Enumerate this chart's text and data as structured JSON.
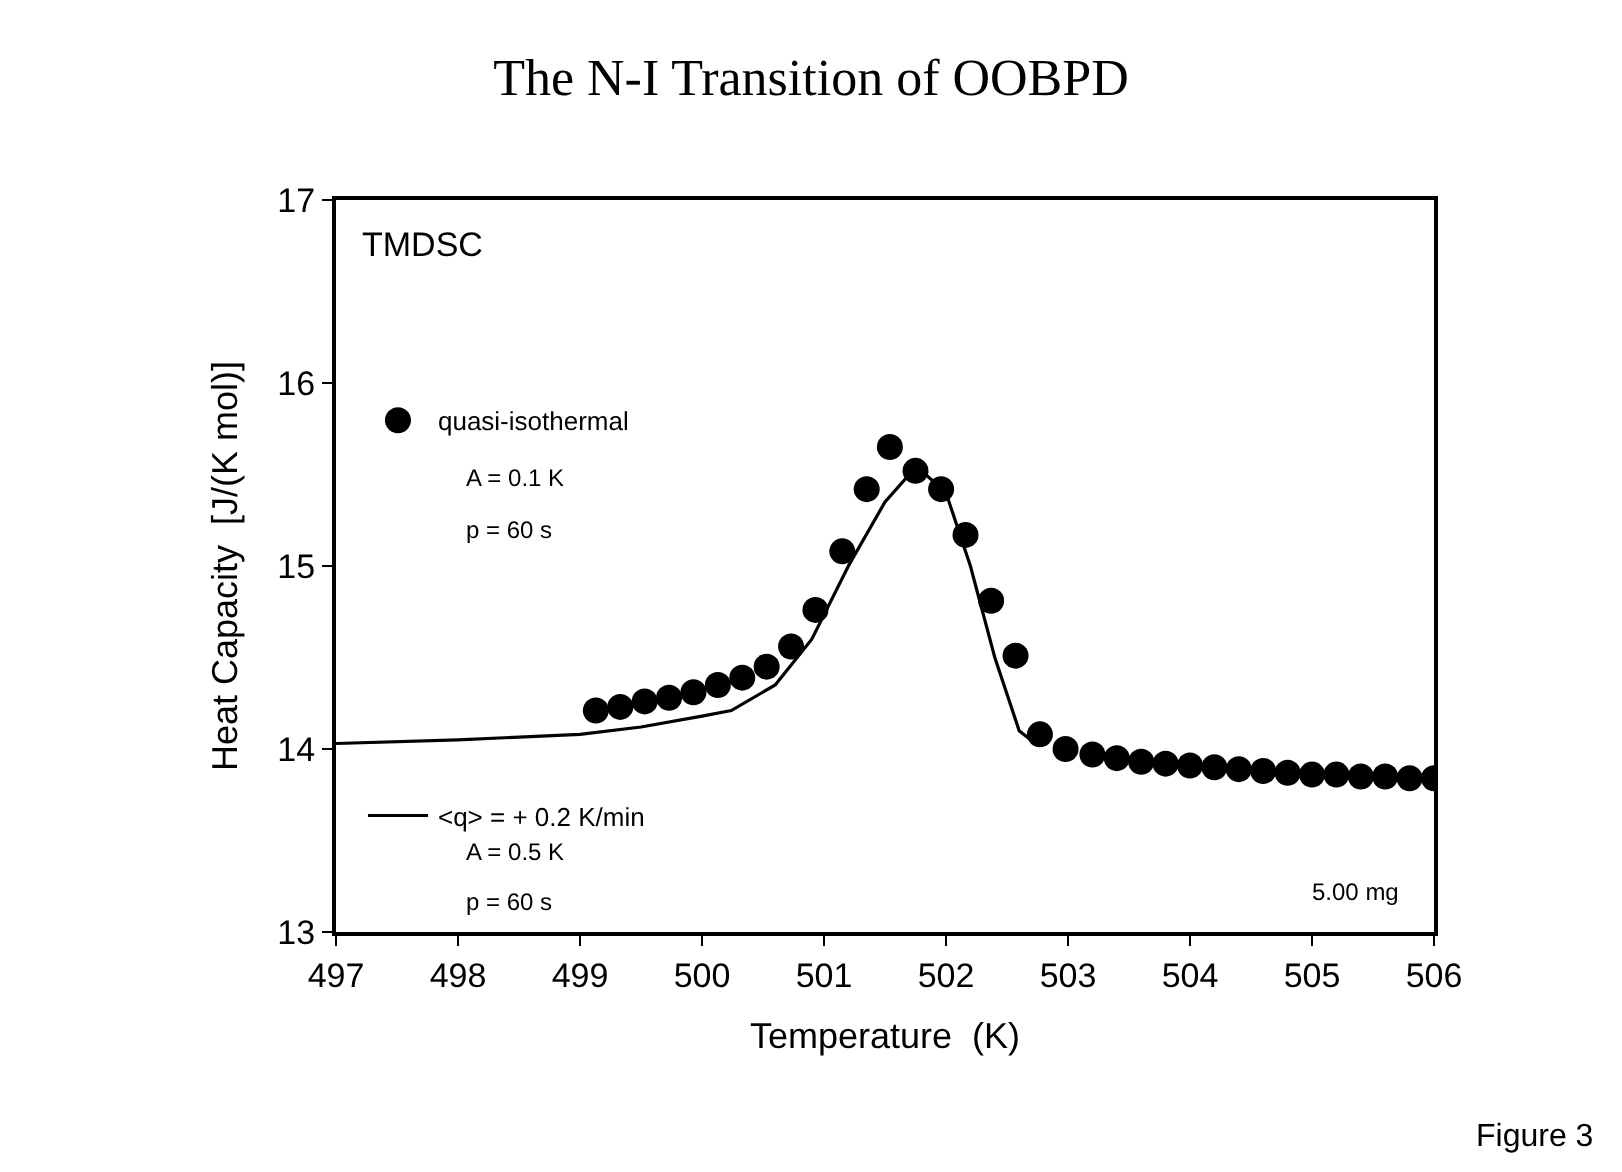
{
  "chart_data": {
    "type": "scatter",
    "title": "The N-I Transition of OOBPD",
    "xlabel": "Temperature  (K)",
    "ylabel": "Heat Capacity  [J/(K mol)]",
    "xlim": [
      497,
      506
    ],
    "xticks": [
      497,
      498,
      499,
      500,
      501,
      502,
      503,
      504,
      505,
      506
    ],
    "ylim": [
      13,
      17
    ],
    "yticks": [
      13,
      14,
      15,
      16,
      17
    ],
    "legend": "left",
    "marker": "circle",
    "series": [
      {
        "name": "quasi-isothermal",
        "color": "#000000",
        "x": [
          499.13,
          499.33,
          499.53,
          499.73,
          499.93,
          500.13,
          500.33,
          500.53,
          500.73,
          500.93,
          501.15,
          501.35,
          501.54,
          501.75,
          501.96,
          502.16,
          502.37,
          502.57,
          502.77,
          502.98,
          503.2,
          503.4,
          503.6,
          503.8,
          504.0,
          504.2,
          504.4,
          504.6,
          504.8,
          505.0,
          505.2,
          505.4,
          505.6,
          505.8,
          506.0
        ],
        "values": [
          14.21,
          14.23,
          14.26,
          14.28,
          14.31,
          14.35,
          14.39,
          14.45,
          14.56,
          14.76,
          15.08,
          15.42,
          15.65,
          15.52,
          15.42,
          15.17,
          14.81,
          14.51,
          14.08,
          14.0,
          13.97,
          13.95,
          13.93,
          13.92,
          13.91,
          13.9,
          13.89,
          13.88,
          13.87,
          13.86,
          13.86,
          13.85,
          13.85,
          13.84,
          13.84
        ]
      },
      {
        "name": "<q> = + 0.2 K/min",
        "type": "line",
        "marker": "none",
        "color": "#000000",
        "x": [
          497,
          498,
          499,
          499.5,
          500,
          500.24,
          500.6,
          500.9,
          501.2,
          501.5,
          501.7,
          501.8,
          502.0,
          502.2,
          502.4,
          502.6,
          502.75
        ],
        "values": [
          14.03,
          14.05,
          14.08,
          14.12,
          14.18,
          14.21,
          14.35,
          14.6,
          15.0,
          15.35,
          15.5,
          15.52,
          15.4,
          15.0,
          14.5,
          14.1,
          14.02
        ]
      }
    ],
    "annotations": [
      "TMDSC",
      "A = 0.1 K",
      "p = 60 s",
      "A = 0.5 K",
      "p = 60 s",
      "5.00 mg",
      "Figure 3"
    ]
  }
}
